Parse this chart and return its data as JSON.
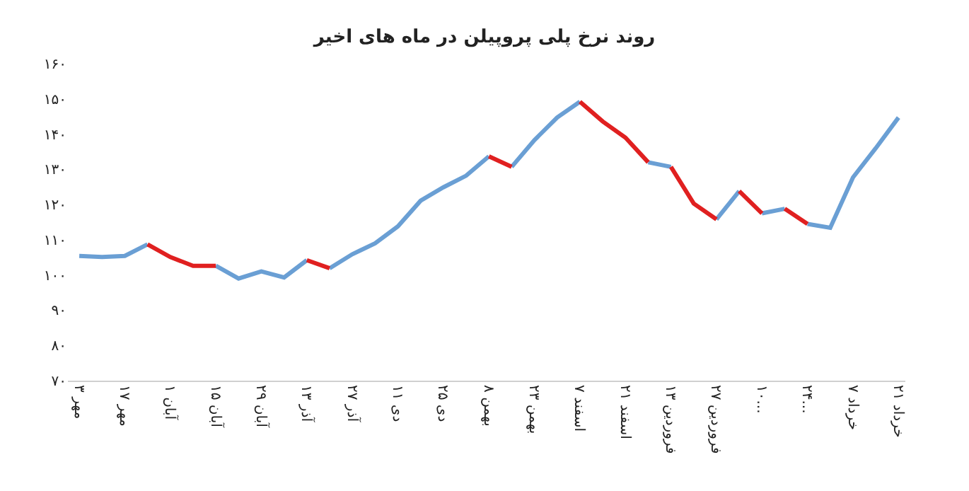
{
  "chart_data": {
    "type": "line",
    "title": "روند نرخ پلی پروپیلن در ماه های اخیر",
    "categories": [
      "۳ مهر",
      null,
      "۱۷ مهر",
      null,
      "۱ آبان",
      null,
      "۱۵ آبان",
      null,
      "۲۹ آبان",
      null,
      "۱۳ آذر",
      null,
      "۲۷ آذر",
      null,
      "۱۱ دی",
      null,
      "۲۵ دی",
      null,
      "۸ بهمن",
      null,
      "۲۳ بهمن",
      null,
      "۷ اسفند",
      null,
      "۲۱ اسفند",
      null,
      "۱۳ فروردین",
      null,
      "۲۷ فروردین",
      null,
      "۱۰...",
      null,
      "۲۴...",
      null,
      "۷ خرداد",
      null,
      "۲۱ خرداد"
    ],
    "series": [
      {
        "color": "#6a9fd4",
        "values": [
          105.4,
          105.1,
          105.4,
          108.7,
          null,
          null,
          null,
          null,
          null,
          null,
          null,
          101.9,
          105.9,
          109.0,
          113.8,
          121.1,
          124.9,
          128.2,
          133.7,
          null,
          null,
          null,
          null,
          null,
          null,
          132.0,
          130.7,
          null,
          null,
          null,
          117.5,
          118.8,
          null,
          null,
          null,
          null,
          null
        ]
      },
      {
        "color": "#6a9fd4",
        "values": [
          null,
          null,
          null,
          null,
          null,
          null,
          102.6,
          99.0,
          101.0,
          99.3,
          104.2,
          null,
          null,
          null,
          null,
          null,
          null,
          null,
          null,
          130.7,
          138.3,
          144.7,
          149.2,
          null,
          null,
          null,
          null,
          null,
          115.8,
          123.8,
          null,
          null,
          114.5,
          113.4,
          127.7,
          136.0,
          144.7
        ]
      },
      {
        "color": "#e02020",
        "values": [
          null,
          null,
          null,
          108.7,
          105.1,
          102.6,
          102.6,
          null,
          null,
          null,
          null,
          null,
          null,
          null,
          null,
          null,
          null,
          null,
          133.7,
          130.7,
          null,
          null,
          null,
          null,
          null,
          null,
          130.7,
          120.3,
          115.8,
          null,
          null,
          118.8,
          114.5,
          null,
          null,
          null,
          null
        ]
      },
      {
        "color": "#e02020",
        "values": [
          null,
          null,
          null,
          null,
          null,
          null,
          null,
          null,
          null,
          null,
          104.2,
          101.9,
          null,
          null,
          null,
          null,
          null,
          null,
          null,
          null,
          null,
          null,
          149.2,
          143.6,
          139.0,
          132.0,
          null,
          null,
          null,
          123.8,
          117.5,
          null,
          null,
          null,
          null,
          null,
          null
        ]
      }
    ],
    "ylim": [
      70,
      160
    ],
    "yticks": [
      {
        "value": 70,
        "label": "۷۰"
      },
      {
        "value": 80,
        "label": "۸۰"
      },
      {
        "value": 90,
        "label": "۹۰"
      },
      {
        "value": 100,
        "label": "۱۰۰"
      },
      {
        "value": 110,
        "label": "۱۱۰"
      },
      {
        "value": 120,
        "label": "۱۲۰"
      },
      {
        "value": 130,
        "label": "۱۳۰"
      },
      {
        "value": 140,
        "label": "۱۴۰"
      },
      {
        "value": 150,
        "label": "۱۵۰"
      },
      {
        "value": 160,
        "label": "۱۶۰"
      }
    ],
    "line_style": "solid"
  }
}
